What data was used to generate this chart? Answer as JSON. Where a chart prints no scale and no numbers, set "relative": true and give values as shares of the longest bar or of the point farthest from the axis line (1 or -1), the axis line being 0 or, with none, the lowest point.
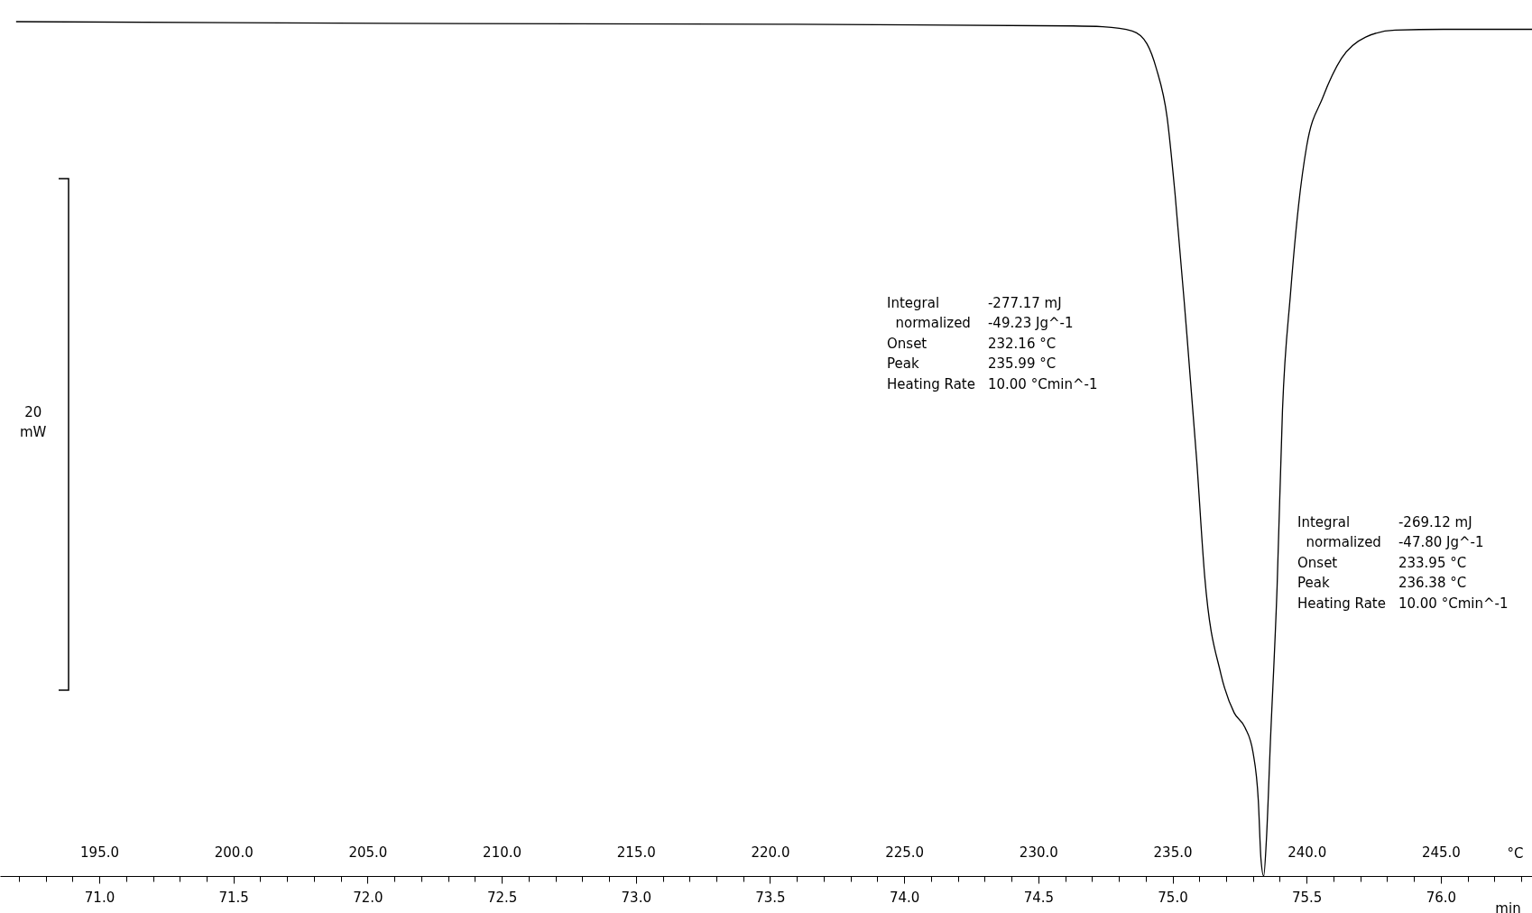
{
  "chart_data": {
    "type": "line",
    "relative": true,
    "color": "#000000",
    "x": [
      191.9,
      205.8,
      220.4,
      231.3,
      232.4,
      233.5,
      234.05,
      234.4,
      234.8,
      235.1,
      235.5,
      235.9,
      236.2,
      236.8,
      237.3,
      237.7,
      238.0,
      238.2,
      238.3,
      238.4,
      238.5,
      238.65,
      238.9,
      239.1,
      239.4,
      239.7,
      240.0,
      240.6,
      241.3,
      242.2,
      243.3,
      245.1,
      248.4
    ],
    "values": [
      1.0,
      0.998,
      0.997,
      0.995,
      0.994,
      0.989,
      0.974,
      0.945,
      0.888,
      0.797,
      0.648,
      0.488,
      0.351,
      0.237,
      0.191,
      0.174,
      0.145,
      0.088,
      0.019,
      0,
      0.042,
      0.157,
      0.339,
      0.545,
      0.682,
      0.785,
      0.854,
      0.911,
      0.957,
      0.982,
      0.99,
      0.991,
      0.991
    ],
    "xlabel": "°C",
    "x2label": "min",
    "xlim": [
      191.3,
      248.4
    ],
    "x2lim": [
      70.63,
      76.34
    ],
    "xticks": [
      {
        "value": 192,
        "label": null
      },
      {
        "value": 193,
        "label": null
      },
      {
        "value": 194,
        "label": null
      },
      {
        "value": 195,
        "label": "195.0"
      },
      {
        "value": 196,
        "label": null
      },
      {
        "value": 197,
        "label": null
      },
      {
        "value": 198,
        "label": null
      },
      {
        "value": 199,
        "label": null
      },
      {
        "value": 200,
        "label": "200.0"
      },
      {
        "value": 201,
        "label": null
      },
      {
        "value": 202,
        "label": null
      },
      {
        "value": 203,
        "label": null
      },
      {
        "value": 204,
        "label": null
      },
      {
        "value": 205,
        "label": "205.0"
      },
      {
        "value": 206,
        "label": null
      },
      {
        "value": 207,
        "label": null
      },
      {
        "value": 208,
        "label": null
      },
      {
        "value": 209,
        "label": null
      },
      {
        "value": 210,
        "label": "210.0"
      },
      {
        "value": 211,
        "label": null
      },
      {
        "value": 212,
        "label": null
      },
      {
        "value": 213,
        "label": null
      },
      {
        "value": 214,
        "label": null
      },
      {
        "value": 215,
        "label": "215.0"
      },
      {
        "value": 216,
        "label": null
      },
      {
        "value": 217,
        "label": null
      },
      {
        "value": 218,
        "label": null
      },
      {
        "value": 219,
        "label": null
      },
      {
        "value": 220,
        "label": "220.0"
      },
      {
        "value": 221,
        "label": null
      },
      {
        "value": 222,
        "label": null
      },
      {
        "value": 223,
        "label": null
      },
      {
        "value": 224,
        "label": null
      },
      {
        "value": 225,
        "label": "225.0"
      },
      {
        "value": 226,
        "label": null
      },
      {
        "value": 227,
        "label": null
      },
      {
        "value": 228,
        "label": null
      },
      {
        "value": 229,
        "label": null
      },
      {
        "value": 230,
        "label": "230.0"
      },
      {
        "value": 231,
        "label": null
      },
      {
        "value": 232,
        "label": null
      },
      {
        "value": 233,
        "label": null
      },
      {
        "value": 234,
        "label": null
      },
      {
        "value": 235,
        "label": "235.0"
      },
      {
        "value": 236,
        "label": null
      },
      {
        "value": 237,
        "label": null
      },
      {
        "value": 238,
        "label": null
      },
      {
        "value": 239,
        "label": null
      },
      {
        "value": 240,
        "label": "240.0"
      },
      {
        "value": 241,
        "label": null
      },
      {
        "value": 242,
        "label": null
      },
      {
        "value": 243,
        "label": null
      },
      {
        "value": 244,
        "label": null
      },
      {
        "value": 245,
        "label": "245.0"
      },
      {
        "value": 246,
        "label": null
      },
      {
        "value": 247,
        "label": null
      },
      {
        "value": 248,
        "label": null
      }
    ],
    "x2ticks": [
      {
        "value": 71,
        "label": "71.0"
      },
      {
        "value": 71.5,
        "label": "71.5"
      },
      {
        "value": 72,
        "label": "72.0"
      },
      {
        "value": 72.5,
        "label": "72.5"
      },
      {
        "value": 73,
        "label": "73.0"
      },
      {
        "value": 73.5,
        "label": "73.5"
      },
      {
        "value": 74,
        "label": "74.0"
      },
      {
        "value": 74.5,
        "label": "74.5"
      },
      {
        "value": 75,
        "label": "75.0"
      },
      {
        "value": 75.5,
        "label": "75.5"
      },
      {
        "value": 76,
        "label": "76.0"
      }
    ],
    "annotations": [
      "Integral\t-277.17 mJ\n  normalized\t-49.23 Jg^-1\nOnset\t232.16 °C\nPeak\t235.99 °C\nHeating Rate\t10.00 °Cmin^-1",
      "Integral\t-269.12 mJ\n  normalized\t-47.80 Jg^-1\nOnset\t233.95 °C\nPeak\t236.38 °C\nHeating Rate\t10.00 °Cmin^-1",
      "20\nmW"
    ]
  }
}
